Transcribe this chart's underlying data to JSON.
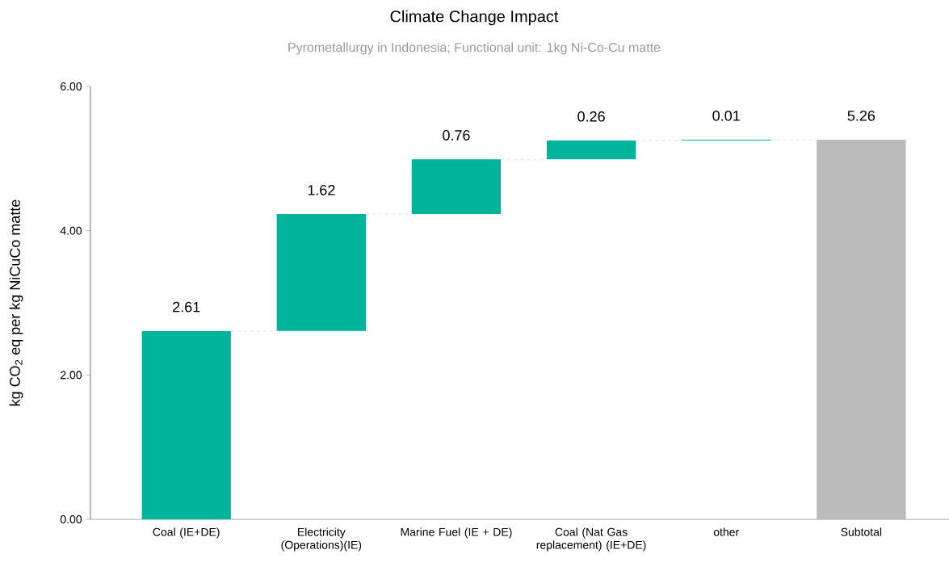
{
  "chart_data": {
    "type": "bar",
    "title": "Climate Change Impact",
    "subtitle": "Pyrometallurgy in Indonesia; Functional unit: 1kg Ni-Co-Cu matte",
    "ylabel": "kg CO$_{2}$ eq per kg NiCuCo matte",
    "categories": [
      "Coal (IE+DE)",
      "Electricity (Operations)(IE)",
      "Marine Fuel (IE + DE)",
      "Coal (Nat Gas replacement) (IE+DE)",
      "other",
      "Subtotal"
    ],
    "values": [
      2.61,
      1.62,
      0.76,
      0.26,
      0.01,
      5.26
    ],
    "base": [
      0,
      2.61,
      4.23,
      4.99,
      5.25,
      0
    ],
    "colors": [
      "#00b39b",
      "#00b39b",
      "#00b39b",
      "#00b39b",
      "#00b39b",
      "#bbbbbb"
    ],
    "value_labels": [
      "2.61",
      "1.62",
      "0.76",
      "0.26",
      "0.01",
      "5.26"
    ],
    "ylim": [
      0,
      6
    ],
    "yticks": [
      {
        "value": 0,
        "label": "0.00"
      },
      {
        "value": 2,
        "label": "2.00"
      },
      {
        "value": 4,
        "label": "4.00"
      },
      {
        "value": 6,
        "label": "6.00"
      }
    ],
    "grid": false
  }
}
